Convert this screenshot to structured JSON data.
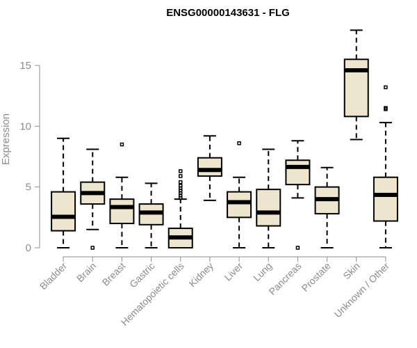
{
  "chart_data": {
    "type": "boxplot",
    "title": "ENSG00000143631 - FLG",
    "ylabel": "Expression",
    "xlabel": "",
    "ylim": [
      0,
      18
    ],
    "yticks": [
      0,
      5,
      10,
      15
    ],
    "colors": {
      "box_fill": "#ede5cd",
      "stroke": "#000000",
      "axis": "#8c8c8c"
    },
    "categories": [
      "Bladder",
      "Brain",
      "Breast",
      "Gastric",
      "Hematopoietic cells",
      "Kidney",
      "Liver",
      "Lung",
      "Pancreas",
      "Prostate",
      "Skin",
      "Unknown / Other"
    ],
    "boxes": [
      {
        "name": "Bladder",
        "min": 0,
        "q1": 1.4,
        "median": 2.55,
        "q3": 4.6,
        "max": 9.0,
        "outliers": []
      },
      {
        "name": "Brain",
        "min": 1.5,
        "q1": 3.6,
        "median": 4.5,
        "q3": 5.4,
        "max": 8.1,
        "outliers": [
          0.0
        ]
      },
      {
        "name": "Breast",
        "min": 0,
        "q1": 2.0,
        "median": 3.35,
        "q3": 4.0,
        "max": 5.8,
        "outliers": [
          8.5
        ]
      },
      {
        "name": "Gastric",
        "min": 0,
        "q1": 1.9,
        "median": 2.9,
        "q3": 3.6,
        "max": 5.3,
        "outliers": []
      },
      {
        "name": "Hematopoietic cells",
        "min": 0,
        "q1": 0.0,
        "median": 0.85,
        "q3": 1.6,
        "max": 4.0,
        "outliers": [
          4.1,
          4.3,
          4.5,
          4.7,
          4.9,
          5.1,
          5.4,
          5.9,
          6.3
        ]
      },
      {
        "name": "Kidney",
        "min": 3.9,
        "q1": 5.9,
        "median": 6.4,
        "q3": 7.4,
        "max": 9.2,
        "outliers": []
      },
      {
        "name": "Liver",
        "min": 0,
        "q1": 2.5,
        "median": 3.75,
        "q3": 4.6,
        "max": 5.8,
        "outliers": [
          8.6
        ]
      },
      {
        "name": "Lung",
        "min": 0,
        "q1": 1.8,
        "median": 2.9,
        "q3": 4.8,
        "max": 8.1,
        "outliers": []
      },
      {
        "name": "Pancreas",
        "min": 4.1,
        "q1": 5.2,
        "median": 6.65,
        "q3": 7.2,
        "max": 8.8,
        "outliers": [
          0.0
        ]
      },
      {
        "name": "Prostate",
        "min": 0,
        "q1": 2.8,
        "median": 4.0,
        "q3": 5.0,
        "max": 6.6,
        "outliers": []
      },
      {
        "name": "Skin",
        "min": 8.9,
        "q1": 10.8,
        "median": 14.6,
        "q3": 15.5,
        "max": 17.9,
        "outliers": []
      },
      {
        "name": "Unknown / Other",
        "min": 0,
        "q1": 2.2,
        "median": 4.35,
        "q3": 5.8,
        "max": 10.3,
        "outliers": [
          11.4,
          11.5,
          13.2
        ]
      }
    ]
  }
}
